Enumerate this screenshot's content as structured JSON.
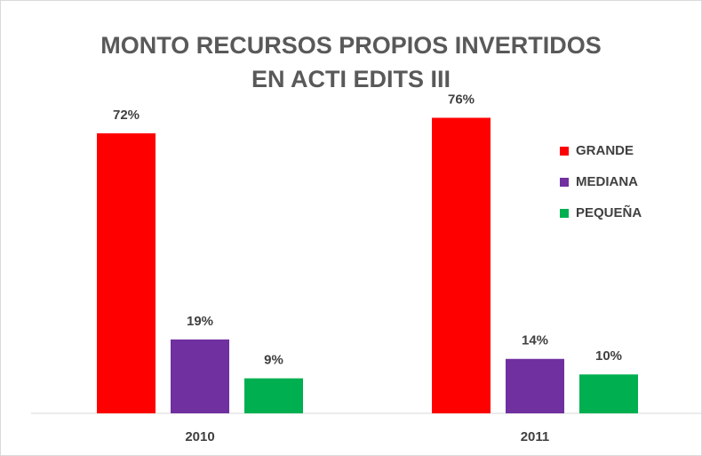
{
  "chart_data": {
    "type": "bar",
    "title": "MONTO RECURSOS PROPIOS INVERTIDOS EN ACTI EDITS III",
    "categories": [
      "2010",
      "2011"
    ],
    "series": [
      {
        "name": "GRANDE",
        "color": "#ff0000",
        "values": [
          72,
          76
        ],
        "value_labels": [
          "72%",
          "76%"
        ]
      },
      {
        "name": "MEDIANA",
        "color": "#7030a0",
        "values": [
          19,
          14
        ],
        "value_labels": [
          "19%",
          "14%"
        ]
      },
      {
        "name": "PEQUEÑA",
        "color": "#00b050",
        "values": [
          9,
          10
        ],
        "value_labels": [
          "9%",
          "10%"
        ]
      }
    ],
    "legend": "right"
  }
}
